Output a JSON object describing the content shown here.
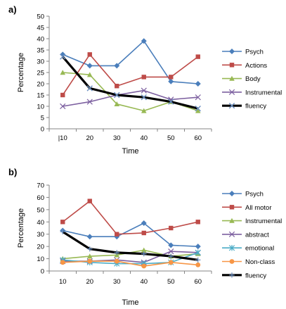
{
  "chart_data": [
    {
      "type": "line",
      "panel_label": "a)",
      "xlabel": "Time",
      "ylabel": "Percentage",
      "x": [
        10,
        20,
        30,
        40,
        50,
        60
      ],
      "x_tick_labels": [
        "|10",
        "20",
        "30",
        "40",
        "50",
        "60"
      ],
      "ylim": [
        0,
        50
      ],
      "y_ticks": [
        0,
        5,
        10,
        15,
        20,
        25,
        30,
        35,
        40,
        45,
        50
      ],
      "grid": false,
      "legend_position": "right",
      "series": [
        {
          "name": "Psych",
          "values": [
            33,
            28,
            28,
            39,
            21,
            20
          ],
          "color": "#4a7ebb",
          "marker": "diamond"
        },
        {
          "name": "Actions",
          "values": [
            15,
            33,
            19,
            23,
            23,
            32
          ],
          "color": "#be4b48",
          "marker": "square"
        },
        {
          "name": "Body",
          "values": [
            25,
            24,
            11,
            8,
            12,
            8
          ],
          "color": "#98b954",
          "marker": "triangle"
        },
        {
          "name": "Instrumental",
          "values": [
            10,
            12,
            15,
            17,
            13,
            14
          ],
          "color": "#7d60a0",
          "marker": "x"
        },
        {
          "name": "fluency",
          "values": [
            32,
            18,
            15,
            14,
            12,
            9
          ],
          "color": "#000000",
          "marker": "x-thick",
          "thick": true
        }
      ]
    },
    {
      "type": "line",
      "panel_label": "b)",
      "xlabel": "Time",
      "ylabel": "Percentage",
      "x": [
        10,
        20,
        30,
        40,
        50,
        60
      ],
      "x_tick_labels": [
        "10",
        "20",
        "30",
        "40",
        "50",
        "60"
      ],
      "ylim": [
        0,
        70
      ],
      "y_ticks": [
        0,
        10,
        20,
        30,
        40,
        50,
        60,
        70
      ],
      "grid": false,
      "legend_position": "right",
      "series": [
        {
          "name": "Psych",
          "values": [
            33,
            28,
            28,
            39,
            21,
            20
          ],
          "color": "#4a7ebb",
          "marker": "diamond"
        },
        {
          "name": "All motor",
          "values": [
            40,
            57,
            30,
            31,
            35,
            40
          ],
          "color": "#be4b48",
          "marker": "square"
        },
        {
          "name": "Instrumental",
          "values": [
            10,
            12,
            13,
            17,
            12,
            14
          ],
          "color": "#98b954",
          "marker": "triangle"
        },
        {
          "name": "abstract",
          "values": [
            8,
            8,
            9,
            7,
            16,
            15
          ],
          "color": "#7d60a0",
          "marker": "x"
        },
        {
          "name": "emotional",
          "values": [
            9,
            7,
            6,
            6,
            7,
            15
          ],
          "color": "#4bacc6",
          "marker": "star"
        },
        {
          "name": "Non-class",
          "values": [
            7,
            8,
            8,
            4,
            7,
            5
          ],
          "color": "#f79646",
          "marker": "circle"
        },
        {
          "name": "fluency",
          "values": [
            32,
            18,
            15,
            14,
            12,
            9
          ],
          "color": "#000000",
          "marker": "plus",
          "thick": true
        }
      ]
    }
  ]
}
